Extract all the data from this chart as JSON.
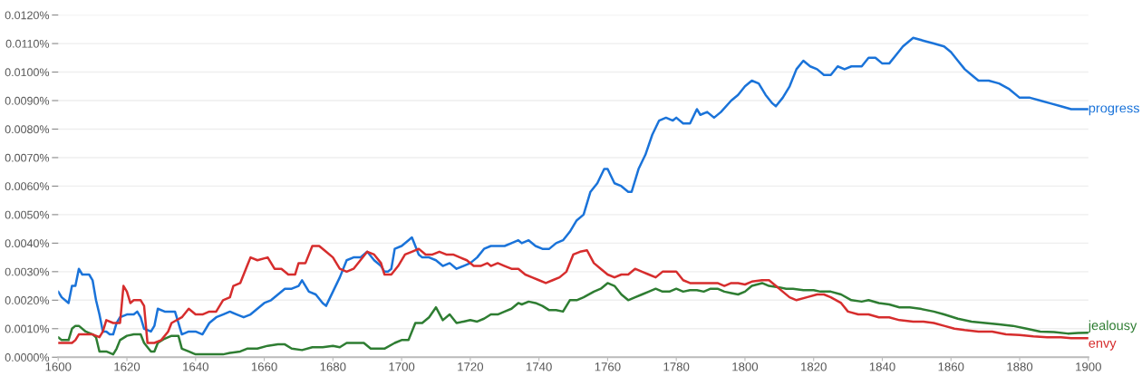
{
  "chart_data": {
    "type": "line",
    "xlim": [
      1600,
      1900
    ],
    "ylim": [
      0,
      0.012
    ],
    "xticks": [
      1600,
      1620,
      1640,
      1660,
      1680,
      1700,
      1720,
      1740,
      1760,
      1780,
      1800,
      1820,
      1840,
      1860,
      1880,
      1900
    ],
    "yticks": [
      {
        "value": 0,
        "label": "0.0000%"
      },
      {
        "value": 0.001,
        "label": "0.0010%"
      },
      {
        "value": 0.002,
        "label": "0.0020%"
      },
      {
        "value": 0.003,
        "label": "0.0030%"
      },
      {
        "value": 0.004,
        "label": "0.0040%"
      },
      {
        "value": 0.005,
        "label": "0.0050%"
      },
      {
        "value": 0.006,
        "label": "0.0060%"
      },
      {
        "value": 0.007,
        "label": "0.0070%"
      },
      {
        "value": 0.008,
        "label": "0.0080%"
      },
      {
        "value": 0.009,
        "label": "0.0090%"
      },
      {
        "value": 0.01,
        "label": "0.0100%"
      },
      {
        "value": 0.011,
        "label": "0.0110%"
      },
      {
        "value": 0.012,
        "label": "0.0120%"
      }
    ],
    "grid": "y",
    "legend": false,
    "marker": "none",
    "line_style": "solid",
    "series": [
      {
        "name": "progress",
        "color": "#1a73d9",
        "x": [
          1600,
          1601,
          1603,
          1604,
          1605,
          1606,
          1607,
          1609,
          1610,
          1611,
          1612,
          1613,
          1614,
          1615,
          1616,
          1617,
          1618,
          1620,
          1622,
          1623,
          1624,
          1625,
          1627,
          1628,
          1629,
          1631,
          1632,
          1633,
          1634,
          1635,
          1636,
          1638,
          1640,
          1642,
          1644,
          1646,
          1648,
          1650,
          1652,
          1654,
          1656,
          1658,
          1660,
          1662,
          1664,
          1666,
          1668,
          1670,
          1671,
          1673,
          1675,
          1677,
          1678,
          1680,
          1682,
          1684,
          1686,
          1688,
          1690,
          1692,
          1694,
          1695,
          1696,
          1697,
          1698,
          1700,
          1702,
          1703,
          1705,
          1706,
          1708,
          1710,
          1712,
          1714,
          1716,
          1718,
          1720,
          1722,
          1724,
          1726,
          1728,
          1730,
          1732,
          1734,
          1735,
          1737,
          1739,
          1741,
          1743,
          1745,
          1747,
          1749,
          1751,
          1753,
          1755,
          1757,
          1759,
          1760,
          1762,
          1764,
          1766,
          1767,
          1769,
          1771,
          1773,
          1775,
          1777,
          1779,
          1780,
          1782,
          1784,
          1786,
          1787,
          1789,
          1791,
          1793,
          1796,
          1798,
          1800,
          1802,
          1804,
          1806,
          1808,
          1809,
          1811,
          1813,
          1815,
          1817,
          1819,
          1821,
          1823,
          1825,
          1827,
          1829,
          1831,
          1834,
          1836,
          1838,
          1840,
          1842,
          1844,
          1846,
          1849,
          1852,
          1855,
          1858,
          1860,
          1862,
          1864,
          1866,
          1868,
          1871,
          1874,
          1877,
          1880,
          1883,
          1886,
          1889,
          1892,
          1895,
          1897,
          1900
        ],
        "values": [
          0.0023,
          0.0021,
          0.0019,
          0.0025,
          0.0025,
          0.0031,
          0.0029,
          0.0029,
          0.0027,
          0.002,
          0.0015,
          0.0009,
          0.0009,
          0.0008,
          0.0008,
          0.0012,
          0.0014,
          0.0015,
          0.0015,
          0.0016,
          0.0014,
          0.001,
          0.0009,
          0.0011,
          0.0017,
          0.0016,
          0.0016,
          0.0016,
          0.0016,
          0.0012,
          0.0008,
          0.0009,
          0.0009,
          0.0008,
          0.0012,
          0.0014,
          0.0015,
          0.0016,
          0.0015,
          0.0014,
          0.0015,
          0.0017,
          0.0019,
          0.002,
          0.0022,
          0.0024,
          0.0024,
          0.0025,
          0.0027,
          0.0023,
          0.0022,
          0.0019,
          0.0018,
          0.0023,
          0.0028,
          0.0034,
          0.0035,
          0.0035,
          0.0037,
          0.0034,
          0.0032,
          0.003,
          0.003,
          0.0031,
          0.0038,
          0.0039,
          0.0041,
          0.0042,
          0.0036,
          0.0035,
          0.0035,
          0.0034,
          0.0032,
          0.0033,
          0.0031,
          0.0032,
          0.0033,
          0.0035,
          0.0038,
          0.0039,
          0.0039,
          0.0039,
          0.004,
          0.0041,
          0.004,
          0.0041,
          0.0039,
          0.0038,
          0.0038,
          0.004,
          0.0041,
          0.0044,
          0.0048,
          0.005,
          0.0058,
          0.0061,
          0.0066,
          0.0066,
          0.0061,
          0.006,
          0.0058,
          0.0058,
          0.0066,
          0.0071,
          0.0078,
          0.0083,
          0.0084,
          0.0083,
          0.0084,
          0.0082,
          0.0082,
          0.0087,
          0.0085,
          0.0086,
          0.0084,
          0.0086,
          0.009,
          0.0092,
          0.0095,
          0.0097,
          0.0096,
          0.0092,
          0.0089,
          0.0088,
          0.0091,
          0.0095,
          0.0101,
          0.0104,
          0.0102,
          0.0101,
          0.0099,
          0.0099,
          0.0102,
          0.0101,
          0.0102,
          0.0102,
          0.0105,
          0.0105,
          0.0103,
          0.0103,
          0.0106,
          0.0109,
          0.0112,
          0.0111,
          0.011,
          0.0109,
          0.0107,
          0.0104,
          0.0101,
          0.0099,
          0.0097,
          0.0097,
          0.0096,
          0.0094,
          0.0091,
          0.0091,
          0.009,
          0.0089,
          0.0088,
          0.0087,
          0.0087,
          0.0087
        ]
      },
      {
        "name": "jealousy",
        "color": "#2e7d32",
        "x": [
          1600,
          1601,
          1603,
          1604,
          1605,
          1606,
          1608,
          1610,
          1611,
          1612,
          1614,
          1616,
          1617,
          1618,
          1620,
          1622,
          1624,
          1625,
          1627,
          1628,
          1629,
          1631,
          1633,
          1635,
          1636,
          1638,
          1640,
          1643,
          1646,
          1648,
          1650,
          1653,
          1655,
          1658,
          1661,
          1664,
          1666,
          1668,
          1671,
          1674,
          1677,
          1680,
          1682,
          1684,
          1687,
          1689,
          1691,
          1693,
          1695,
          1698,
          1700,
          1702,
          1704,
          1706,
          1708,
          1710,
          1712,
          1714,
          1716,
          1718,
          1720,
          1722,
          1724,
          1726,
          1728,
          1730,
          1732,
          1734,
          1735,
          1737,
          1739,
          1741,
          1743,
          1745,
          1747,
          1749,
          1751,
          1753,
          1756,
          1758,
          1760,
          1762,
          1764,
          1766,
          1768,
          1770,
          1772,
          1774,
          1776,
          1778,
          1780,
          1782,
          1784,
          1786,
          1788,
          1790,
          1792,
          1794,
          1796,
          1798,
          1800,
          1802,
          1805,
          1807,
          1810,
          1812,
          1814,
          1817,
          1820,
          1822,
          1825,
          1828,
          1831,
          1834,
          1836,
          1839,
          1842,
          1845,
          1848,
          1851,
          1855,
          1858,
          1862,
          1866,
          1870,
          1874,
          1878,
          1882,
          1886,
          1890,
          1894,
          1897,
          1900
        ],
        "values": [
          0.0007,
          0.0006,
          0.0006,
          0.001,
          0.0011,
          0.0011,
          0.0009,
          0.0008,
          0.0007,
          0.0002,
          0.0002,
          0.0001,
          0.0003,
          0.0006,
          0.00075,
          0.0008,
          0.0008,
          0.0005,
          0.0002,
          0.0002,
          0.0005,
          0.00065,
          0.00075,
          0.00075,
          0.0003,
          0.0002,
          0.0001,
          0.0001,
          0.0001,
          0.0001,
          0.00015,
          0.0002,
          0.0003,
          0.0003,
          0.0004,
          0.00045,
          0.00045,
          0.0003,
          0.00025,
          0.00035,
          0.00035,
          0.0004,
          0.00035,
          0.0005,
          0.0005,
          0.0005,
          0.0003,
          0.0003,
          0.0003,
          0.0005,
          0.0006,
          0.0006,
          0.0012,
          0.0012,
          0.0014,
          0.00175,
          0.0013,
          0.0015,
          0.0012,
          0.00125,
          0.0013,
          0.00125,
          0.00135,
          0.0015,
          0.0015,
          0.0016,
          0.0017,
          0.0019,
          0.00185,
          0.00195,
          0.0019,
          0.0018,
          0.00165,
          0.00165,
          0.0016,
          0.002,
          0.002,
          0.0021,
          0.0023,
          0.0024,
          0.0026,
          0.0025,
          0.0022,
          0.002,
          0.0021,
          0.0022,
          0.0023,
          0.0024,
          0.0023,
          0.0023,
          0.0024,
          0.0023,
          0.00235,
          0.00235,
          0.0023,
          0.0024,
          0.0024,
          0.0023,
          0.00225,
          0.0022,
          0.0023,
          0.0025,
          0.0026,
          0.0025,
          0.00245,
          0.0024,
          0.0024,
          0.00235,
          0.00235,
          0.0023,
          0.0023,
          0.0022,
          0.002,
          0.00195,
          0.002,
          0.0019,
          0.00185,
          0.00175,
          0.00175,
          0.0017,
          0.0016,
          0.0015,
          0.00135,
          0.00125,
          0.0012,
          0.00115,
          0.0011,
          0.001,
          0.0009,
          0.00088,
          0.00083,
          0.00085,
          0.00086
        ]
      },
      {
        "name": "envy",
        "color": "#d62d2d",
        "x": [
          1600,
          1602,
          1604,
          1605,
          1606,
          1608,
          1610,
          1612,
          1613,
          1614,
          1616,
          1618,
          1619,
          1620,
          1621,
          1622,
          1624,
          1625,
          1626,
          1628,
          1630,
          1632,
          1633,
          1636,
          1638,
          1640,
          1642,
          1644,
          1646,
          1648,
          1650,
          1651,
          1653,
          1655,
          1656,
          1658,
          1661,
          1663,
          1665,
          1667,
          1669,
          1670,
          1672,
          1674,
          1676,
          1678,
          1680,
          1682,
          1684,
          1686,
          1688,
          1690,
          1692,
          1694,
          1695,
          1697,
          1699,
          1701,
          1703,
          1705,
          1707,
          1709,
          1711,
          1713,
          1715,
          1717,
          1719,
          1721,
          1723,
          1725,
          1726,
          1728,
          1730,
          1732,
          1734,
          1736,
          1738,
          1740,
          1742,
          1744,
          1746,
          1748,
          1750,
          1752,
          1754,
          1756,
          1758,
          1760,
          1762,
          1764,
          1766,
          1768,
          1770,
          1772,
          1774,
          1776,
          1778,
          1780,
          1782,
          1784,
          1786,
          1788,
          1790,
          1792,
          1794,
          1796,
          1798,
          1800,
          1802,
          1805,
          1807,
          1809,
          1811,
          1813,
          1815,
          1818,
          1821,
          1823,
          1825,
          1828,
          1830,
          1833,
          1836,
          1839,
          1842,
          1845,
          1849,
          1852,
          1855,
          1858,
          1861,
          1864,
          1868,
          1872,
          1876,
          1880,
          1884,
          1888,
          1892,
          1895,
          1900
        ],
        "values": [
          0.0005,
          0.0005,
          0.0005,
          0.0006,
          0.0008,
          0.0008,
          0.0008,
          0.0007,
          0.0009,
          0.0013,
          0.0012,
          0.0012,
          0.0025,
          0.0023,
          0.0019,
          0.002,
          0.002,
          0.0018,
          0.0005,
          0.0005,
          0.0006,
          0.0009,
          0.0012,
          0.0014,
          0.0017,
          0.0015,
          0.0015,
          0.0016,
          0.0016,
          0.002,
          0.0021,
          0.0025,
          0.0026,
          0.0032,
          0.0035,
          0.0034,
          0.0035,
          0.0031,
          0.0031,
          0.0029,
          0.0029,
          0.0033,
          0.0033,
          0.0039,
          0.0039,
          0.0037,
          0.0035,
          0.0031,
          0.003,
          0.0031,
          0.0034,
          0.0037,
          0.0036,
          0.0033,
          0.0029,
          0.0029,
          0.0032,
          0.0036,
          0.0037,
          0.0038,
          0.0036,
          0.0036,
          0.0037,
          0.0036,
          0.0036,
          0.0035,
          0.0034,
          0.0032,
          0.0032,
          0.0033,
          0.0032,
          0.0033,
          0.0032,
          0.0031,
          0.0031,
          0.0029,
          0.0028,
          0.0027,
          0.0026,
          0.0027,
          0.0028,
          0.003,
          0.0036,
          0.0037,
          0.00375,
          0.0033,
          0.0031,
          0.0029,
          0.0028,
          0.0029,
          0.0029,
          0.0031,
          0.003,
          0.0029,
          0.0028,
          0.003,
          0.003,
          0.003,
          0.0027,
          0.0026,
          0.0026,
          0.0026,
          0.0026,
          0.0026,
          0.0025,
          0.0026,
          0.0026,
          0.00255,
          0.00265,
          0.0027,
          0.0027,
          0.0025,
          0.0023,
          0.0021,
          0.002,
          0.0021,
          0.0022,
          0.0022,
          0.0021,
          0.0019,
          0.0016,
          0.0015,
          0.0015,
          0.0014,
          0.0014,
          0.0013,
          0.00125,
          0.00125,
          0.0012,
          0.0011,
          0.001,
          0.00095,
          0.0009,
          0.0009,
          0.0008,
          0.00078,
          0.00073,
          0.0007,
          0.0007,
          0.00067,
          0.00067
        ]
      }
    ]
  }
}
